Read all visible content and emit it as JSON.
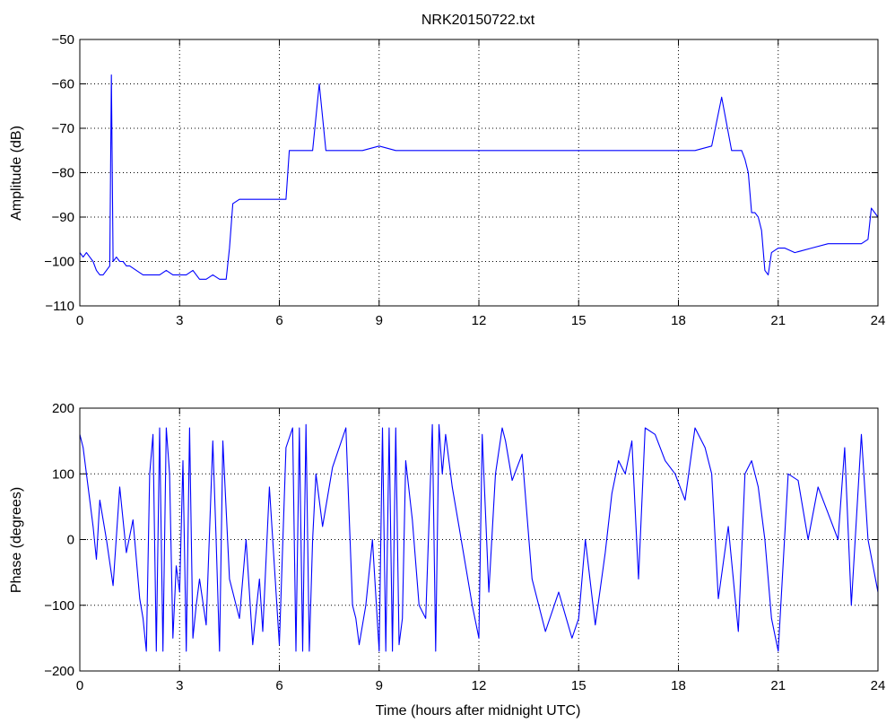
{
  "chart_data": [
    {
      "type": "line",
      "title": "NRK20150722.txt",
      "xlabel": "",
      "ylabel": "Amplitude (dB)",
      "xlim": [
        0,
        24
      ],
      "ylim": [
        -110,
        -50
      ],
      "xticks": [
        0,
        3,
        6,
        9,
        12,
        15,
        18,
        21,
        24
      ],
      "yticks": [
        -110,
        -100,
        -90,
        -80,
        -70,
        -60,
        -50
      ],
      "xtick_labels": [
        "0",
        "3",
        "6",
        "9",
        "12",
        "15",
        "18",
        "21",
        "24"
      ],
      "ytick_labels": [
        "−110",
        "−100",
        "−90",
        "−80",
        "−70",
        "−60",
        "−50"
      ],
      "grid": true,
      "color": "#0000ff",
      "series": [
        {
          "x": [
            0,
            0.1,
            0.2,
            0.3,
            0.4,
            0.5,
            0.6,
            0.7,
            0.8,
            0.9,
            0.95,
            1.0,
            1.1,
            1.2,
            1.3,
            1.4,
            1.5,
            1.7,
            1.9,
            2.0,
            2.2,
            2.4,
            2.6,
            2.8,
            3.0,
            3.2,
            3.4,
            3.6,
            3.8,
            4.0,
            4.2,
            4.4,
            4.5,
            4.6,
            4.8,
            5.0,
            5.2,
            5.4,
            5.6,
            5.8,
            6.0,
            6.2,
            6.3,
            6.5,
            6.8,
            7.0,
            7.2,
            7.4,
            7.6,
            7.9,
            8.2,
            8.5,
            9.0,
            9.5,
            10.0,
            10.5,
            11.0,
            11.5,
            12.0,
            12.5,
            13.0,
            13.5,
            14.0,
            14.5,
            15.0,
            15.5,
            16.0,
            16.5,
            17.0,
            17.5,
            18.0,
            18.5,
            19.0,
            19.3,
            19.6,
            19.9,
            20.0,
            20.1,
            20.2,
            20.3,
            20.4,
            20.5,
            20.6,
            20.7,
            20.8,
            21.0,
            21.2,
            21.5,
            22.0,
            22.5,
            23.0,
            23.5,
            23.7,
            23.8,
            24.0
          ],
          "y": [
            -98,
            -99,
            -98,
            -99,
            -100,
            -102,
            -103,
            -103,
            -102,
            -101,
            -58,
            -100,
            -99,
            -100,
            -100,
            -101,
            -101,
            -102,
            -103,
            -103,
            -103,
            -103,
            -102,
            -103,
            -103,
            -103,
            -102,
            -104,
            -104,
            -103,
            -104,
            -104,
            -97,
            -87,
            -86,
            -86,
            -86,
            -86,
            -86,
            -86,
            -86,
            -86,
            -75,
            -75,
            -75,
            -75,
            -60,
            -75,
            -75,
            -75,
            -75,
            -75,
            -74,
            -75,
            -75,
            -75,
            -75,
            -75,
            -75,
            -75,
            -75,
            -75,
            -75,
            -75,
            -75,
            -75,
            -75,
            -75,
            -75,
            -75,
            -75,
            -75,
            -74,
            -63,
            -75,
            -75,
            -77,
            -80,
            -89,
            -89,
            -90,
            -93,
            -102,
            -103,
            -98,
            -97,
            -97,
            -98,
            -97,
            -96,
            -96,
            -96,
            -95,
            -88,
            -90
          ]
        }
      ]
    },
    {
      "type": "line",
      "title": "",
      "xlabel": "Time (hours after midnight UTC)",
      "ylabel": "Phase (degrees)",
      "xlim": [
        0,
        24
      ],
      "ylim": [
        -200,
        200
      ],
      "xticks": [
        0,
        3,
        6,
        9,
        12,
        15,
        18,
        21,
        24
      ],
      "yticks": [
        -200,
        -100,
        0,
        100,
        200
      ],
      "xtick_labels": [
        "0",
        "3",
        "6",
        "9",
        "12",
        "15",
        "18",
        "21",
        "24"
      ],
      "ytick_labels": [
        "−200",
        "−100",
        "0",
        "100",
        "200"
      ],
      "grid": true,
      "color": "#0000ff",
      "series": [
        {
          "x": [
            0,
            0.1,
            0.2,
            0.3,
            0.4,
            0.5,
            0.6,
            0.8,
            1.0,
            1.2,
            1.4,
            1.6,
            1.8,
            1.9,
            2.0,
            2.1,
            2.2,
            2.3,
            2.4,
            2.5,
            2.6,
            2.7,
            2.8,
            2.9,
            3.0,
            3.1,
            3.2,
            3.3,
            3.4,
            3.5,
            3.6,
            3.8,
            4.0,
            4.1,
            4.2,
            4.3,
            4.5,
            4.8,
            5.0,
            5.2,
            5.4,
            5.5,
            5.7,
            6.0,
            6.2,
            6.4,
            6.5,
            6.6,
            6.7,
            6.8,
            6.9,
            7.0,
            7.1,
            7.2,
            7.3,
            7.6,
            8.0,
            8.2,
            8.3,
            8.4,
            8.6,
            8.8,
            9.0,
            9.1,
            9.2,
            9.3,
            9.4,
            9.5,
            9.6,
            9.7,
            9.8,
            10.0,
            10.2,
            10.4,
            10.6,
            10.7,
            10.8,
            10.9,
            11.0,
            11.2,
            11.4,
            11.6,
            11.8,
            12.0,
            12.1,
            12.3,
            12.5,
            12.7,
            12.8,
            13.0,
            13.3,
            13.6,
            14.0,
            14.4,
            14.8,
            15.0,
            15.2,
            15.5,
            15.8,
            16.0,
            16.2,
            16.4,
            16.6,
            16.8,
            17.0,
            17.3,
            17.6,
            17.9,
            18.2,
            18.5,
            18.8,
            19.0,
            19.2,
            19.5,
            19.8,
            20.0,
            20.2,
            20.4,
            20.6,
            20.8,
            21.0,
            21.3,
            21.6,
            21.9,
            22.2,
            22.5,
            22.8,
            23.0,
            23.2,
            23.5,
            23.7,
            24.0
          ],
          "y": [
            160,
            140,
            100,
            60,
            20,
            -30,
            60,
            0,
            -70,
            80,
            -20,
            30,
            -90,
            -120,
            -170,
            100,
            160,
            -170,
            170,
            -170,
            170,
            100,
            -150,
            -40,
            -80,
            120,
            -170,
            170,
            -150,
            -100,
            -60,
            -130,
            150,
            0,
            -170,
            150,
            -60,
            -120,
            0,
            -160,
            -60,
            -140,
            80,
            -160,
            140,
            170,
            -170,
            170,
            -170,
            175,
            -170,
            0,
            100,
            60,
            20,
            110,
            170,
            -100,
            -120,
            -160,
            -100,
            0,
            -170,
            170,
            -170,
            170,
            -170,
            170,
            -160,
            -120,
            120,
            30,
            -100,
            -120,
            175,
            -170,
            175,
            100,
            160,
            80,
            20,
            -40,
            -100,
            -150,
            160,
            -80,
            100,
            170,
            150,
            90,
            130,
            -60,
            -140,
            -80,
            -150,
            -120,
            0,
            -130,
            -20,
            70,
            120,
            100,
            150,
            -60,
            170,
            160,
            120,
            100,
            60,
            170,
            140,
            100,
            -90,
            20,
            -140,
            100,
            120,
            80,
            0,
            -120,
            -170,
            100,
            90,
            0,
            80,
            40,
            0,
            140,
            -100,
            160,
            0,
            -80
          ]
        }
      ]
    }
  ]
}
